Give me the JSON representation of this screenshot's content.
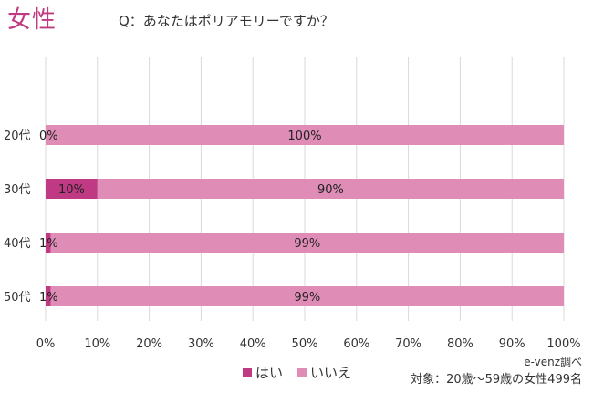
{
  "header": {
    "title": "女性",
    "question": "Q：あなたはポリアモリーですか？"
  },
  "footer": {
    "source": "e-venz調べ",
    "subject": "対象：20歳〜59歳の女性499名"
  },
  "colors": {
    "yes": "#c03a83",
    "no": "#df8db6",
    "title": "#c03a83",
    "grid": "#d9d9d9"
  },
  "chart_data": {
    "type": "bar",
    "orientation": "horizontal",
    "stacked": true,
    "categories": [
      "20代",
      "30代",
      "40代",
      "50代"
    ],
    "series": [
      {
        "name": "はい",
        "values": [
          0,
          10,
          1,
          1
        ],
        "labels": [
          "0%",
          "10%",
          "1%",
          "1%"
        ]
      },
      {
        "name": "いいえ",
        "values": [
          100,
          90,
          99,
          99
        ],
        "labels": [
          "100%",
          "90%",
          "99%",
          "99%"
        ]
      }
    ],
    "xlim": [
      0,
      100
    ],
    "xticks": [
      "0%",
      "10%",
      "20%",
      "30%",
      "40%",
      "50%",
      "60%",
      "70%",
      "80%",
      "90%",
      "100%"
    ],
    "grid": true,
    "legend_position": "bottom"
  }
}
